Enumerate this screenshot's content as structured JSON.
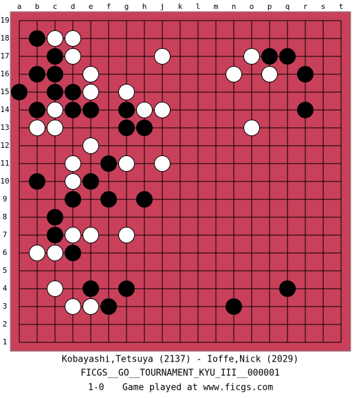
{
  "board": {
    "columns": [
      "a",
      "b",
      "c",
      "d",
      "e",
      "f",
      "g",
      "h",
      "j",
      "k",
      "l",
      "m",
      "n",
      "o",
      "p",
      "q",
      "r",
      "s",
      "t"
    ],
    "rows": [
      19,
      18,
      17,
      16,
      15,
      14,
      13,
      12,
      11,
      10,
      9,
      8,
      7,
      6,
      5,
      4,
      3,
      2,
      1
    ],
    "stones": [
      {
        "color": "black",
        "col": "b",
        "row": 18
      },
      {
        "color": "white",
        "col": "c",
        "row": 18
      },
      {
        "color": "white",
        "col": "d",
        "row": 18
      },
      {
        "color": "black",
        "col": "c",
        "row": 17
      },
      {
        "color": "white",
        "col": "d",
        "row": 17
      },
      {
        "color": "white",
        "col": "j",
        "row": 17
      },
      {
        "color": "white",
        "col": "o",
        "row": 17
      },
      {
        "color": "black",
        "col": "p",
        "row": 17
      },
      {
        "color": "black",
        "col": "q",
        "row": 17
      },
      {
        "color": "black",
        "col": "b",
        "row": 16
      },
      {
        "color": "black",
        "col": "c",
        "row": 16
      },
      {
        "color": "white",
        "col": "e",
        "row": 16
      },
      {
        "color": "white",
        "col": "n",
        "row": 16
      },
      {
        "color": "white",
        "col": "p",
        "row": 16
      },
      {
        "color": "black",
        "col": "r",
        "row": 16
      },
      {
        "color": "black",
        "col": "a",
        "row": 15
      },
      {
        "color": "black",
        "col": "c",
        "row": 15
      },
      {
        "color": "black",
        "col": "d",
        "row": 15
      },
      {
        "color": "white",
        "col": "e",
        "row": 15
      },
      {
        "color": "white",
        "col": "g",
        "row": 15
      },
      {
        "color": "black",
        "col": "b",
        "row": 14
      },
      {
        "color": "white",
        "col": "c",
        "row": 14
      },
      {
        "color": "black",
        "col": "d",
        "row": 14
      },
      {
        "color": "black",
        "col": "e",
        "row": 14
      },
      {
        "color": "black",
        "col": "g",
        "row": 14
      },
      {
        "color": "white",
        "col": "h",
        "row": 14
      },
      {
        "color": "white",
        "col": "j",
        "row": 14
      },
      {
        "color": "black",
        "col": "r",
        "row": 14
      },
      {
        "color": "white",
        "col": "b",
        "row": 13
      },
      {
        "color": "white",
        "col": "c",
        "row": 13
      },
      {
        "color": "black",
        "col": "g",
        "row": 13
      },
      {
        "color": "black",
        "col": "h",
        "row": 13
      },
      {
        "color": "white",
        "col": "o",
        "row": 13
      },
      {
        "color": "white",
        "col": "e",
        "row": 12
      },
      {
        "color": "white",
        "col": "d",
        "row": 11
      },
      {
        "color": "black",
        "col": "f",
        "row": 11
      },
      {
        "color": "white",
        "col": "g",
        "row": 11
      },
      {
        "color": "white",
        "col": "j",
        "row": 11
      },
      {
        "color": "black",
        "col": "b",
        "row": 10
      },
      {
        "color": "white",
        "col": "d",
        "row": 10
      },
      {
        "color": "black",
        "col": "e",
        "row": 10
      },
      {
        "color": "black",
        "col": "d",
        "row": 9
      },
      {
        "color": "black",
        "col": "f",
        "row": 9
      },
      {
        "color": "black",
        "col": "h",
        "row": 9
      },
      {
        "color": "black",
        "col": "c",
        "row": 8
      },
      {
        "color": "black",
        "col": "c",
        "row": 7
      },
      {
        "color": "white",
        "col": "d",
        "row": 7
      },
      {
        "color": "white",
        "col": "e",
        "row": 7
      },
      {
        "color": "white",
        "col": "g",
        "row": 7
      },
      {
        "color": "white",
        "col": "b",
        "row": 6
      },
      {
        "color": "white",
        "col": "c",
        "row": 6
      },
      {
        "color": "black",
        "col": "d",
        "row": 6
      },
      {
        "color": "white",
        "col": "c",
        "row": 4
      },
      {
        "color": "black",
        "col": "e",
        "row": 4
      },
      {
        "color": "black",
        "col": "g",
        "row": 4
      },
      {
        "color": "black",
        "col": "q",
        "row": 4
      },
      {
        "color": "white",
        "col": "d",
        "row": 3
      },
      {
        "color": "white",
        "col": "e",
        "row": 3
      },
      {
        "color": "black",
        "col": "f",
        "row": 3
      },
      {
        "color": "black",
        "col": "n",
        "row": 3
      }
    ]
  },
  "footer": {
    "players": "Kobayashi,Tetsuya (2137) - Ioffe,Nick (2029)",
    "event": "FICGS__GO__TOURNAMENT_KYU_III__000001",
    "result": "1-0",
    "note": "Game played at www.ficgs.com"
  }
}
